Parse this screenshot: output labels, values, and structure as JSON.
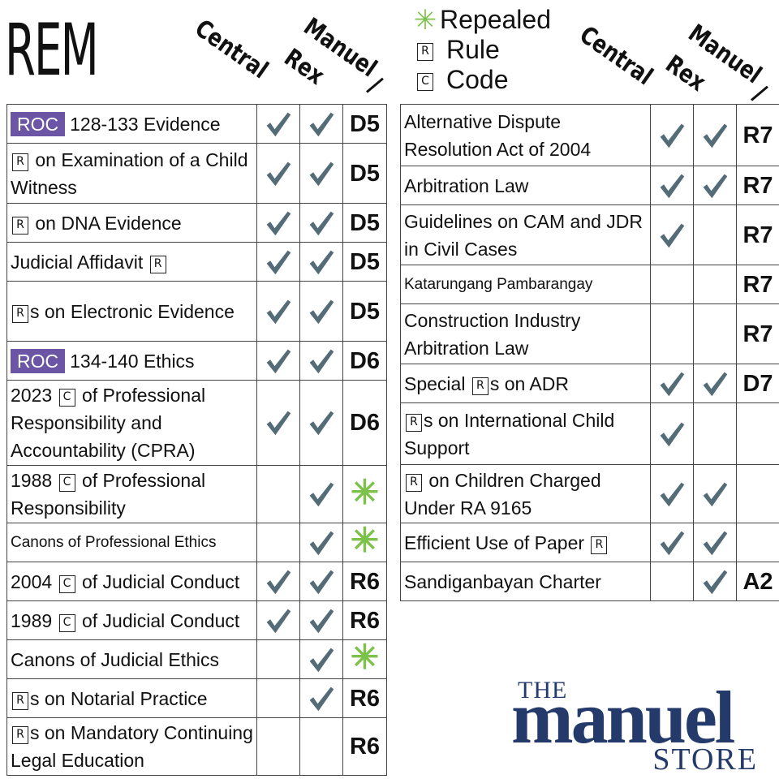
{
  "title": "REM",
  "columns": {
    "central": "Central",
    "rex": "Rex",
    "manuel": "Manuel"
  },
  "legend": {
    "repealed": {
      "symbol": "✳",
      "label": "Repealed"
    },
    "rule": {
      "symbol": "R",
      "label": "Rule"
    },
    "code": {
      "symbol": "C",
      "label": "Code"
    }
  },
  "colors": {
    "roc_badge": "#6c55a4",
    "check": "#546b78",
    "repealed_star": "#7cc24a",
    "logo": "#233a6b"
  },
  "icons": {
    "check": "check-icon",
    "repealed": "asterisk-icon",
    "rule": "boxed-r-icon",
    "code": "boxed-c-icon"
  },
  "left_rows": [
    {
      "badge": "ROC",
      "text": "128-133 Evidence",
      "central": true,
      "rex": true,
      "code": "D5"
    },
    {
      "pre": "R",
      "text": "on Examination of a Child Witness",
      "central": true,
      "rex": true,
      "code": "D5"
    },
    {
      "pre": "R",
      "text": "on DNA Evidence",
      "central": true,
      "rex": true,
      "code": "D5"
    },
    {
      "text": "Judicial Affidavit",
      "post": "R",
      "central": true,
      "rex": true,
      "code": "D5"
    },
    {
      "pre": "R",
      "text": "s on Electronic Evidence",
      "central": true,
      "rex": true,
      "code": "D5"
    },
    {
      "badge": "ROC",
      "text": "134-140 Ethics",
      "central": true,
      "rex": true,
      "code": "D6"
    },
    {
      "text": "2023",
      "mid": "C",
      "text2": "of Professional Responsibility and Accountability (CPRA)",
      "central": true,
      "rex": true,
      "code": "D6"
    },
    {
      "text": "1988",
      "mid": "C",
      "text2": "of Professional Responsibility",
      "central": false,
      "rex": true,
      "code": "",
      "repealed": true
    },
    {
      "text": "Canons of Professional Ethics",
      "small": true,
      "central": false,
      "rex": true,
      "code": "",
      "repealed": true
    },
    {
      "text": "2004",
      "mid": "C",
      "text2": "of Judicial Conduct",
      "central": true,
      "rex": true,
      "code": "R6"
    },
    {
      "text": "1989",
      "mid": "C",
      "text2": "of Judicial Conduct",
      "central": true,
      "rex": true,
      "code": "R6"
    },
    {
      "text": "Canons of Judicial Ethics",
      "central": false,
      "rex": true,
      "code": "",
      "repealed": true
    },
    {
      "pre": "R",
      "text": "s on Notarial Practice",
      "central": false,
      "rex": true,
      "code": "R6"
    },
    {
      "pre": "R",
      "text": "s on Mandatory Continuing Legal Education",
      "central": false,
      "rex": false,
      "code": "R6"
    }
  ],
  "right_rows": [
    {
      "text": "Alternative Dispute Resolution Act of 2004",
      "central": true,
      "rex": true,
      "code": "R7"
    },
    {
      "text": "Arbitration Law",
      "central": true,
      "rex": true,
      "code": "R7"
    },
    {
      "text": "Guidelines on CAM and JDR in Civil Cases",
      "central": true,
      "rex": false,
      "code": "R7"
    },
    {
      "text": "Katarungang Pambarangay",
      "small": true,
      "central": false,
      "rex": false,
      "code": "R7"
    },
    {
      "text": "Construction Industry Arbitration Law",
      "central": false,
      "rex": false,
      "code": "R7"
    },
    {
      "text": "Special",
      "mid": "R",
      "text2": "s on ADR",
      "central": true,
      "rex": true,
      "code": "D7"
    },
    {
      "pre": "R",
      "text": "s on International Child Support",
      "central": true,
      "rex": false,
      "code": ""
    },
    {
      "pre": "R",
      "text": "on Children Charged Under RA 9165",
      "central": true,
      "rex": true,
      "code": ""
    },
    {
      "text": "Efficient Use of Paper",
      "post": "R",
      "central": true,
      "rex": true,
      "code": ""
    },
    {
      "text": "Sandiganbayan Charter",
      "central": false,
      "rex": true,
      "code": "A2"
    }
  ],
  "logo": {
    "the": "THE",
    "name": "manuel",
    "store": "STORE"
  }
}
